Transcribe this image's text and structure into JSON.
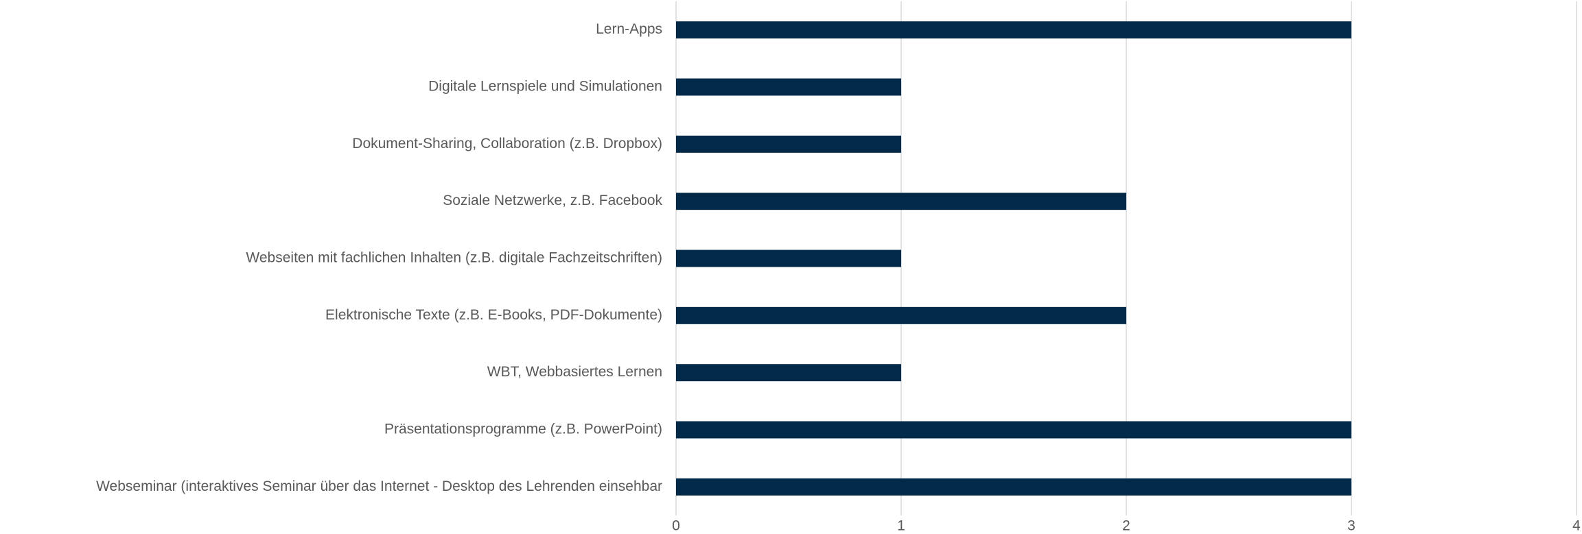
{
  "chart_data": {
    "type": "barh",
    "categories": [
      "Lern-Apps",
      "Digitale Lernspiele und Simulationen",
      "Dokument-Sharing, Collaboration (z.B. Dropbox)",
      "Soziale Netzwerke, z.B. Facebook",
      "Webseiten mit fachlichen Inhalten (z.B. digitale Fachzeitschriften)",
      "Elektronische Texte (z.B. E-Books, PDF-Dokumente)",
      "WBT, Webbasiertes Lernen",
      "Präsentationsprogramme (z.B. PowerPoint)",
      "Webseminar (interaktives Seminar über das Internet - Desktop des Lehrenden einsehbar"
    ],
    "values": [
      3,
      1,
      1,
      2,
      1,
      2,
      1,
      3,
      3
    ],
    "color": "#022a48",
    "xlim": [
      0,
      4
    ],
    "xticks": [
      0,
      1,
      2,
      3,
      4
    ],
    "grid": true
  }
}
